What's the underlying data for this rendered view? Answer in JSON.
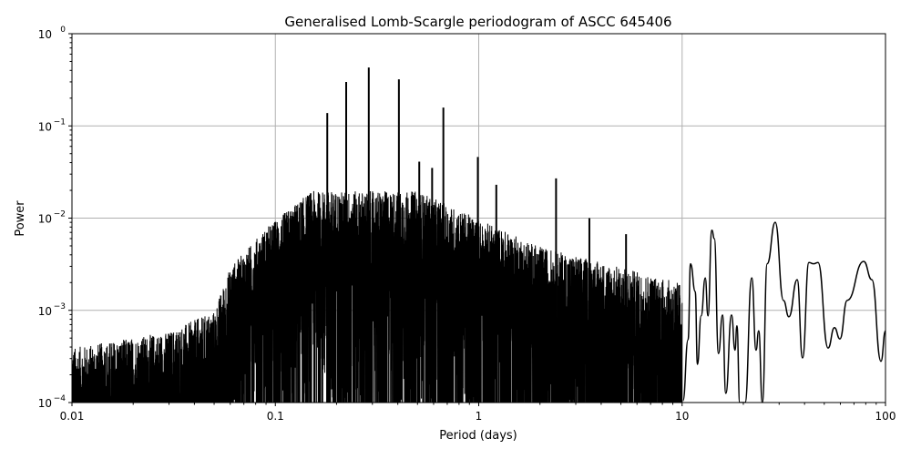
{
  "chart_data": {
    "type": "line",
    "title": "Generalised Lomb-Scargle periodogram of ASCC 645406",
    "xlabel": "Period (days)",
    "ylabel": "Power",
    "xscale": "log",
    "yscale": "log",
    "xlim": [
      0.01,
      100
    ],
    "ylim": [
      0.0001,
      1
    ],
    "grid": true,
    "x_ticks": [
      {
        "v": 0.01,
        "label": "0.01"
      },
      {
        "v": 0.1,
        "label": "0.1"
      },
      {
        "v": 1,
        "label": "1"
      },
      {
        "v": 10,
        "label": "10"
      },
      {
        "v": 100,
        "label": "100"
      }
    ],
    "y_ticks": [
      {
        "v": 0.0001,
        "base": "10",
        "exp": "−4"
      },
      {
        "v": 0.001,
        "base": "10",
        "exp": "−3"
      },
      {
        "v": 0.01,
        "base": "10",
        "exp": "−2"
      },
      {
        "v": 0.1,
        "base": "10",
        "exp": "−1"
      },
      {
        "v": 1,
        "base": "10",
        "exp": "0"
      }
    ],
    "noise_envelope": [
      [
        0.01,
        0.0004
      ],
      [
        0.03,
        0.0006
      ],
      [
        0.05,
        0.001
      ],
      [
        0.06,
        0.003
      ],
      [
        0.09,
        0.008
      ],
      [
        0.15,
        0.02
      ],
      [
        0.3,
        0.02
      ],
      [
        0.5,
        0.02
      ],
      [
        1,
        0.01
      ],
      [
        2,
        0.005
      ],
      [
        5,
        0.003
      ],
      [
        10,
        0.002
      ]
    ],
    "major_peaks": [
      [
        0.18,
        0.138
      ],
      [
        0.223,
        0.3
      ],
      [
        0.288,
        0.43
      ],
      [
        0.405,
        0.32
      ],
      [
        0.51,
        0.041
      ],
      [
        0.59,
        0.035
      ],
      [
        0.67,
        0.158
      ],
      [
        0.99,
        0.046
      ],
      [
        1.22,
        0.023
      ],
      [
        2.4,
        0.027
      ],
      [
        3.5,
        0.01
      ],
      [
        5.3,
        0.0067
      ]
    ],
    "long_period_series": [
      [
        10.1,
        0.000105
      ],
      [
        10.7,
        0.00048
      ],
      [
        11.0,
        0.0032
      ],
      [
        11.6,
        0.0016
      ],
      [
        11.9,
        0.00026
      ],
      [
        12.4,
        0.00087
      ],
      [
        13.0,
        0.00225
      ],
      [
        13.4,
        0.00087
      ],
      [
        14.0,
        0.0074
      ],
      [
        14.4,
        0.006
      ],
      [
        15.1,
        0.00034
      ],
      [
        15.8,
        0.00089
      ],
      [
        16.4,
        0.000126
      ],
      [
        17.5,
        0.00089
      ],
      [
        18.2,
        0.00037
      ],
      [
        18.6,
        0.00068
      ],
      [
        19.2,
        0.0001
      ],
      [
        20.4,
        0.0001
      ],
      [
        22.0,
        0.00225
      ],
      [
        23.1,
        0.00037
      ],
      [
        23.8,
        0.0006
      ],
      [
        24.8,
        0.0001
      ],
      [
        26.2,
        0.0032
      ],
      [
        28.7,
        0.009
      ],
      [
        31.5,
        0.00128
      ],
      [
        33.5,
        0.00085
      ],
      [
        36.8,
        0.00215
      ],
      [
        39.1,
        0.000305
      ],
      [
        42.0,
        0.0033
      ],
      [
        44.3,
        0.0032
      ],
      [
        46.6,
        0.0033
      ],
      [
        52.2,
        0.00039
      ],
      [
        56.1,
        0.00065
      ],
      [
        59.7,
        0.00049
      ],
      [
        64.8,
        0.00128
      ],
      [
        78.1,
        0.0034
      ],
      [
        85.7,
        0.00215
      ],
      [
        95.0,
        0.00028
      ],
      [
        100,
        0.0006
      ]
    ]
  }
}
